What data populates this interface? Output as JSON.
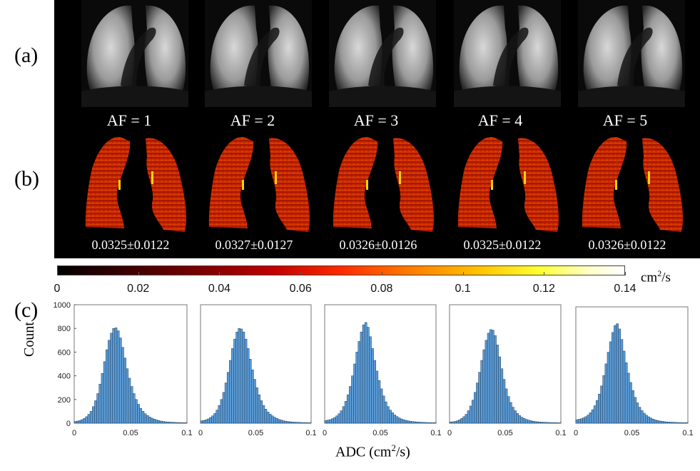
{
  "panel_labels": {
    "a": "(a)",
    "b": "(b)",
    "c": "(c)"
  },
  "acceleration_factors": [
    "AF = 1",
    "AF = 2",
    "AF = 3",
    "AF = 4",
    "AF = 5"
  ],
  "adc_means": [
    "0.0325±0.0122",
    "0.0327±0.0127",
    "0.0326±0.0126",
    "0.0325±0.0122",
    "0.0326±0.0122"
  ],
  "colorbar": {
    "unit_base": "cm",
    "unit_exp": "2",
    "unit_tail": "/s",
    "ticks": [
      "0",
      "0.02",
      "0.04",
      "0.06",
      "0.08",
      "0.1",
      "0.12",
      "0.14"
    ]
  },
  "histograms": {
    "ylabel": "Count",
    "xlabel_base": "ADC (cm",
    "xlabel_exp": "2",
    "xlabel_tail": "/s)",
    "y_ticks": [
      "0",
      "200",
      "400",
      "600",
      "800",
      "1000"
    ],
    "x_ticks": [
      "0",
      "0.05",
      "0.1"
    ]
  },
  "chart_data": {
    "type": "bar",
    "title": "",
    "xlabel": "ADC (cm2/s)",
    "ylabel": "Count",
    "xlim": [
      0,
      0.1
    ],
    "ylim": [
      0,
      1000
    ],
    "bin_width": 0.002,
    "series": [
      {
        "name": "AF = 1",
        "values": [
          15,
          18,
          22,
          30,
          40,
          55,
          75,
          100,
          140,
          190,
          250,
          330,
          420,
          520,
          620,
          700,
          760,
          800,
          805,
          780,
          720,
          640,
          550,
          460,
          380,
          310,
          250,
          200,
          160,
          125,
          100,
          80,
          65,
          52,
          42,
          34,
          28,
          22,
          18,
          15,
          12,
          10,
          9,
          8,
          7,
          6,
          5,
          5,
          4,
          4
        ]
      },
      {
        "name": "AF = 2",
        "values": [
          20,
          24,
          28,
          36,
          48,
          62,
          82,
          110,
          150,
          200,
          260,
          340,
          430,
          530,
          630,
          710,
          770,
          800,
          795,
          770,
          710,
          630,
          540,
          450,
          370,
          300,
          240,
          190,
          150,
          118,
          95,
          76,
          62,
          50,
          40,
          32,
          26,
          21,
          17,
          14,
          12,
          10,
          9,
          8,
          7,
          6,
          5,
          5,
          4,
          4
        ]
      },
      {
        "name": "AF = 3",
        "values": [
          22,
          26,
          30,
          38,
          48,
          62,
          80,
          105,
          140,
          185,
          240,
          310,
          400,
          500,
          600,
          690,
          770,
          830,
          850,
          810,
          730,
          630,
          530,
          440,
          360,
          290,
          230,
          180,
          140,
          110,
          88,
          70,
          56,
          45,
          36,
          29,
          24,
          20,
          16,
          14,
          12,
          10,
          9,
          8,
          7,
          6,
          5,
          5,
          4,
          4
        ]
      },
      {
        "name": "AF = 4",
        "values": [
          10,
          12,
          15,
          20,
          28,
          40,
          55,
          75,
          105,
          145,
          195,
          260,
          340,
          430,
          530,
          620,
          700,
          760,
          790,
          785,
          740,
          660,
          560,
          460,
          370,
          290,
          225,
          175,
          135,
          105,
          82,
          64,
          50,
          40,
          32,
          26,
          21,
          17,
          14,
          12,
          10,
          9,
          8,
          7,
          6,
          5,
          5,
          4,
          4,
          3
        ]
      },
      {
        "name": "AF = 5",
        "values": [
          30,
          34,
          38,
          46,
          56,
          70,
          90,
          115,
          150,
          195,
          250,
          320,
          410,
          510,
          610,
          700,
          780,
          840,
          855,
          810,
          720,
          620,
          520,
          430,
          350,
          280,
          222,
          175,
          137,
          108,
          86,
          69,
          55,
          44,
          35,
          28,
          23,
          19,
          16,
          13,
          11,
          10,
          9,
          8,
          7,
          6,
          5,
          5,
          4,
          4
        ]
      }
    ]
  }
}
